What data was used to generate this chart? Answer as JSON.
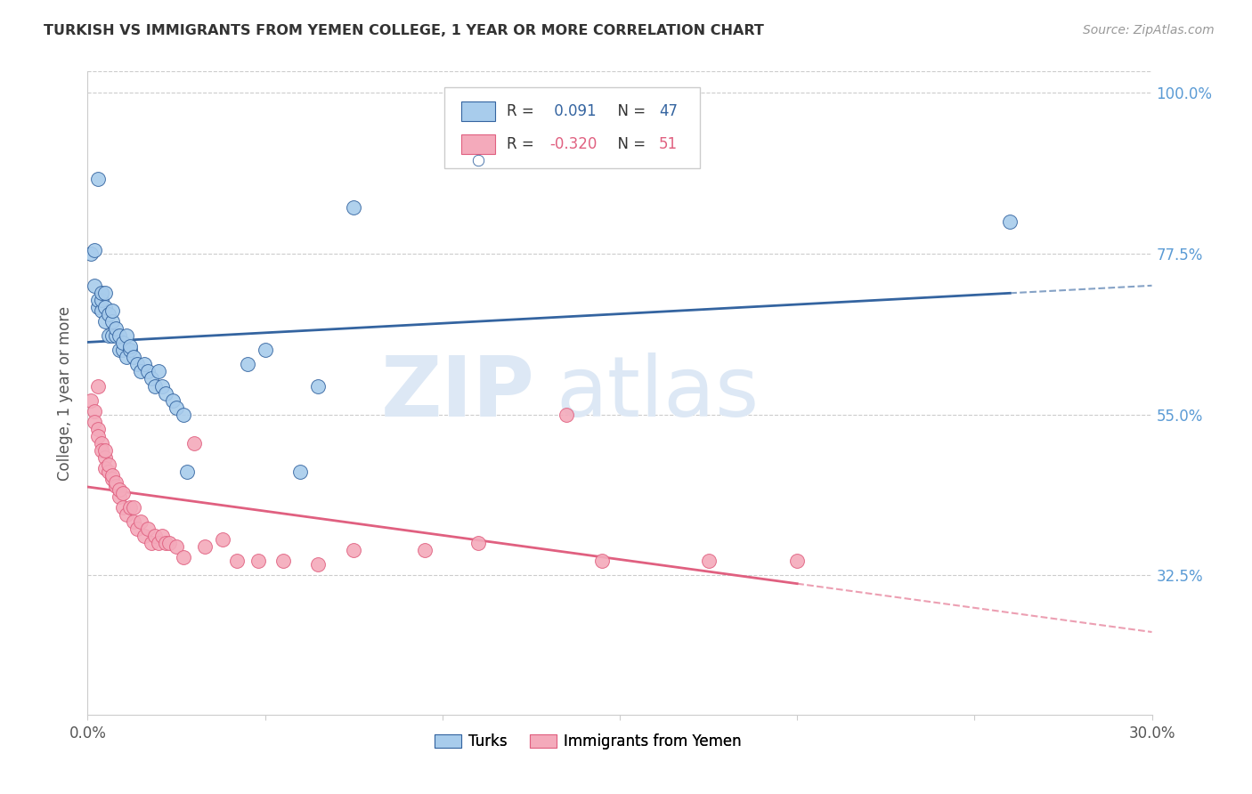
{
  "title": "TURKISH VS IMMIGRANTS FROM YEMEN COLLEGE, 1 YEAR OR MORE CORRELATION CHART",
  "source": "Source: ZipAtlas.com",
  "ylabel": "College, 1 year or more",
  "xlabel": "",
  "xlim": [
    0.0,
    0.3
  ],
  "ylim": [
    0.13,
    1.03
  ],
  "xtick_labels": [
    "0.0%",
    "",
    "",
    "",
    "",
    "",
    "30.0%"
  ],
  "xtick_vals": [
    0.0,
    0.05,
    0.1,
    0.15,
    0.2,
    0.25,
    0.3
  ],
  "ytick_labels_right": [
    "100.0%",
    "77.5%",
    "55.0%",
    "32.5%"
  ],
  "ytick_vals_right": [
    1.0,
    0.775,
    0.55,
    0.325
  ],
  "legend_labels": [
    "Turks",
    "Immigrants from Yemen"
  ],
  "R_turks": 0.091,
  "N_turks": 47,
  "R_yemen": -0.32,
  "N_yemen": 51,
  "blue_color": "#A8CCEC",
  "pink_color": "#F4AABB",
  "blue_line_color": "#3464A0",
  "pink_line_color": "#E06080",
  "watermark_zip": "ZIP",
  "watermark_atlas": "atlas",
  "title_color": "#333333",
  "right_axis_color": "#5B9BD5",
  "turks_x": [
    0.001,
    0.002,
    0.002,
    0.003,
    0.003,
    0.004,
    0.004,
    0.004,
    0.005,
    0.005,
    0.005,
    0.006,
    0.006,
    0.007,
    0.007,
    0.007,
    0.008,
    0.008,
    0.009,
    0.009,
    0.01,
    0.01,
    0.011,
    0.011,
    0.012,
    0.012,
    0.013,
    0.014,
    0.015,
    0.016,
    0.017,
    0.018,
    0.019,
    0.02,
    0.021,
    0.022,
    0.024,
    0.025,
    0.027,
    0.028,
    0.045,
    0.05,
    0.06,
    0.065,
    0.075,
    0.26,
    0.003
  ],
  "turks_y": [
    0.775,
    0.78,
    0.73,
    0.7,
    0.71,
    0.695,
    0.71,
    0.72,
    0.68,
    0.7,
    0.72,
    0.66,
    0.69,
    0.66,
    0.68,
    0.695,
    0.66,
    0.67,
    0.64,
    0.66,
    0.64,
    0.65,
    0.63,
    0.66,
    0.64,
    0.645,
    0.63,
    0.62,
    0.61,
    0.62,
    0.61,
    0.6,
    0.59,
    0.61,
    0.59,
    0.58,
    0.57,
    0.56,
    0.55,
    0.47,
    0.62,
    0.64,
    0.47,
    0.59,
    0.84,
    0.82,
    0.88
  ],
  "yemen_x": [
    0.001,
    0.002,
    0.002,
    0.003,
    0.003,
    0.004,
    0.004,
    0.005,
    0.005,
    0.005,
    0.006,
    0.006,
    0.007,
    0.007,
    0.008,
    0.008,
    0.009,
    0.009,
    0.01,
    0.01,
    0.011,
    0.012,
    0.013,
    0.013,
    0.014,
    0.015,
    0.016,
    0.017,
    0.018,
    0.019,
    0.02,
    0.021,
    0.022,
    0.023,
    0.025,
    0.027,
    0.03,
    0.033,
    0.038,
    0.042,
    0.048,
    0.055,
    0.065,
    0.075,
    0.095,
    0.11,
    0.135,
    0.145,
    0.175,
    0.2,
    0.003
  ],
  "yemen_y": [
    0.57,
    0.555,
    0.54,
    0.53,
    0.52,
    0.51,
    0.5,
    0.49,
    0.475,
    0.5,
    0.47,
    0.48,
    0.46,
    0.465,
    0.45,
    0.455,
    0.435,
    0.445,
    0.42,
    0.44,
    0.41,
    0.42,
    0.4,
    0.42,
    0.39,
    0.4,
    0.38,
    0.39,
    0.37,
    0.38,
    0.37,
    0.38,
    0.37,
    0.37,
    0.365,
    0.35,
    0.51,
    0.365,
    0.375,
    0.345,
    0.345,
    0.345,
    0.34,
    0.36,
    0.36,
    0.37,
    0.55,
    0.345,
    0.345,
    0.345,
    0.59
  ]
}
